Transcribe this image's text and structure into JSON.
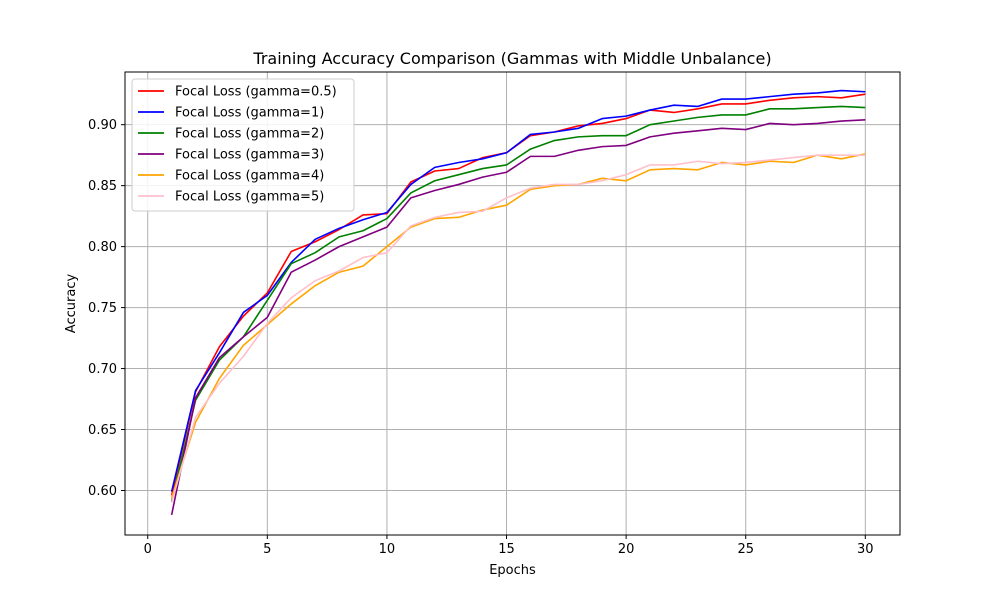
{
  "chart_data": {
    "type": "line",
    "title": "Training Accuracy Comparison (Gammas with Middle Unbalance)",
    "xlabel": "Epochs",
    "ylabel": "Accuracy",
    "xlim": [
      -0.95,
      31.45
    ],
    "ylim": [
      0.5635,
      0.9432
    ],
    "xticks": [
      0,
      5,
      10,
      15,
      20,
      25,
      30
    ],
    "yticks": [
      0.6,
      0.65,
      0.7,
      0.75,
      0.8,
      0.85,
      0.9
    ],
    "grid": true,
    "legend_position": "upper-left",
    "x": [
      1,
      2,
      3,
      4,
      5,
      6,
      7,
      8,
      9,
      10,
      11,
      12,
      13,
      14,
      15,
      16,
      17,
      18,
      19,
      20,
      21,
      22,
      23,
      24,
      25,
      26,
      27,
      28,
      29,
      30
    ],
    "series": [
      {
        "name": "Focal Loss (gamma=0.5)",
        "color": "#ff0000",
        "values": [
          0.596,
          0.681,
          0.718,
          0.743,
          0.762,
          0.796,
          0.804,
          0.814,
          0.826,
          0.827,
          0.853,
          0.862,
          0.864,
          0.873,
          0.877,
          0.891,
          0.894,
          0.899,
          0.901,
          0.905,
          0.912,
          0.91,
          0.913,
          0.917,
          0.917,
          0.92,
          0.922,
          0.923,
          0.922,
          0.925
        ]
      },
      {
        "name": "Focal Loss (gamma=1)",
        "color": "#0000ff",
        "values": [
          0.599,
          0.682,
          0.713,
          0.746,
          0.76,
          0.787,
          0.806,
          0.815,
          0.822,
          0.828,
          0.851,
          0.865,
          0.869,
          0.872,
          0.877,
          0.892,
          0.894,
          0.897,
          0.905,
          0.907,
          0.912,
          0.916,
          0.915,
          0.921,
          0.921,
          0.923,
          0.925,
          0.926,
          0.928,
          0.927
        ]
      },
      {
        "name": "Focal Loss (gamma=2)",
        "color": "#008000",
        "values": [
          0.591,
          0.674,
          0.707,
          0.726,
          0.756,
          0.786,
          0.795,
          0.808,
          0.813,
          0.823,
          0.844,
          0.854,
          0.859,
          0.864,
          0.867,
          0.88,
          0.887,
          0.89,
          0.891,
          0.891,
          0.9,
          0.903,
          0.906,
          0.908,
          0.908,
          0.913,
          0.913,
          0.914,
          0.915,
          0.914
        ]
      },
      {
        "name": "Focal Loss (gamma=3)",
        "color": "#800080",
        "values": [
          0.58,
          0.676,
          0.709,
          0.726,
          0.742,
          0.779,
          0.789,
          0.8,
          0.808,
          0.816,
          0.84,
          0.846,
          0.851,
          0.857,
          0.861,
          0.874,
          0.874,
          0.879,
          0.882,
          0.883,
          0.89,
          0.893,
          0.895,
          0.897,
          0.896,
          0.901,
          0.9,
          0.901,
          0.903,
          0.904
        ]
      },
      {
        "name": "Focal Loss (gamma=4)",
        "color": "#ffa500",
        "values": [
          0.594,
          0.656,
          0.692,
          0.719,
          0.736,
          0.753,
          0.768,
          0.779,
          0.784,
          0.8,
          0.816,
          0.823,
          0.824,
          0.83,
          0.834,
          0.847,
          0.85,
          0.851,
          0.856,
          0.854,
          0.863,
          0.864,
          0.863,
          0.869,
          0.867,
          0.87,
          0.869,
          0.875,
          0.872,
          0.876
        ]
      },
      {
        "name": "Focal Loss (gamma=5)",
        "color": "#ffc0cb",
        "values": [
          0.59,
          0.66,
          0.688,
          0.71,
          0.737,
          0.758,
          0.772,
          0.78,
          0.791,
          0.795,
          0.817,
          0.824,
          0.828,
          0.829,
          0.84,
          0.848,
          0.851,
          0.851,
          0.854,
          0.859,
          0.867,
          0.867,
          0.87,
          0.868,
          0.869,
          0.871,
          0.873,
          0.875,
          0.875,
          0.875
        ]
      }
    ]
  }
}
